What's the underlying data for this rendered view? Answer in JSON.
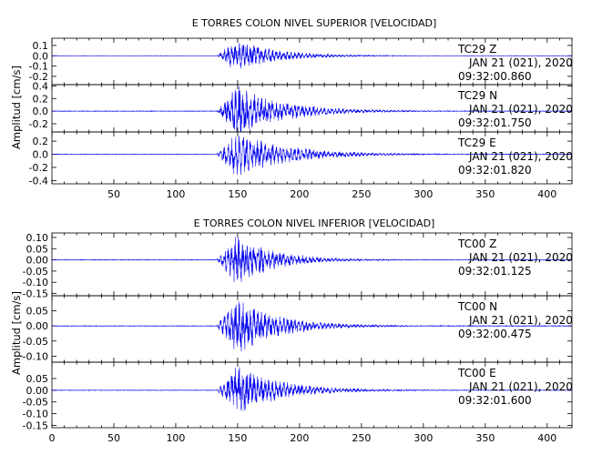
{
  "chart_data": [
    {
      "type": "line",
      "title": "E TORRES COLON NIVEL SUPERIOR [VELOCIDAD]",
      "ylabel": "Amplitud [cm/s]",
      "xlim": [
        0,
        420
      ],
      "x_ticks": [
        50,
        100,
        150,
        200,
        250,
        300,
        350,
        400
      ],
      "grid": false,
      "traces": [
        {
          "station": "TC29",
          "component": "Z",
          "date_label": "JAN 21 (021), 2020",
          "time_label": "09:32:00.860",
          "ylim": [
            -0.28,
            0.17
          ],
          "y_ticks": [
            "0.1",
            "0.0",
            "-0.1",
            "-0.2"
          ],
          "y_tick_values": [
            0.1,
            0.0,
            -0.1,
            -0.2
          ],
          "onset_s": 133,
          "peak_amplitude": 0.15,
          "decay": 32,
          "seed": 11
        },
        {
          "station": "TC29",
          "component": "N",
          "date_label": "JAN 21 (021), 2020",
          "time_label": "09:32:01.750",
          "ylim": [
            -0.33,
            0.42
          ],
          "y_ticks": [
            "0.4",
            "0.2",
            "0.0",
            "-0.2"
          ],
          "y_tick_values": [
            0.4,
            0.2,
            0.0,
            -0.2
          ],
          "onset_s": 133,
          "peak_amplitude": 0.38,
          "decay": 38,
          "seed": 23
        },
        {
          "station": "TC29",
          "component": "E",
          "date_label": "JAN 21 (021), 2020",
          "time_label": "09:32:01.820",
          "ylim": [
            -0.45,
            0.34
          ],
          "y_ticks": [
            "0.2",
            "0.0",
            "-0.2",
            "-0.4"
          ],
          "y_tick_values": [
            0.2,
            0.0,
            -0.2,
            -0.4
          ],
          "onset_s": 133,
          "peak_amplitude": 0.32,
          "decay": 42,
          "seed": 37
        }
      ]
    },
    {
      "type": "line",
      "title": "E TORRES COLON NIVEL INFERIOR [VELOCIDAD]",
      "ylabel": "Amplitud [cm/s]",
      "xlim": [
        0,
        420
      ],
      "x_ticks": [
        0,
        50,
        100,
        150,
        200,
        250,
        300,
        350,
        400
      ],
      "grid": false,
      "traces": [
        {
          "station": "TC00",
          "component": "Z",
          "date_label": "JAN 21 (021), 2020",
          "time_label": "09:32:01.125",
          "ylim": [
            -0.16,
            0.12
          ],
          "y_ticks": [
            "0.10",
            "0.05",
            "0.00",
            "-0.05",
            "-0.10",
            "-0.15"
          ],
          "y_tick_values": [
            0.1,
            0.05,
            0.0,
            -0.05,
            -0.1,
            -0.15
          ],
          "onset_s": 133,
          "peak_amplitude": 0.11,
          "decay": 30,
          "seed": 53
        },
        {
          "station": "TC00",
          "component": "N",
          "date_label": "JAN 21 (021), 2020",
          "time_label": "09:32:00.475",
          "ylim": [
            -0.12,
            0.1
          ],
          "y_ticks": [
            "0.05",
            "0.00",
            "-0.05",
            "-0.10"
          ],
          "y_tick_values": [
            0.05,
            0.0,
            -0.05,
            -0.1
          ],
          "onset_s": 133,
          "peak_amplitude": 0.09,
          "decay": 34,
          "seed": 71
        },
        {
          "station": "TC00",
          "component": "E",
          "date_label": "JAN 21 (021), 2020",
          "time_label": "09:32:01.600",
          "ylim": [
            -0.16,
            0.12
          ],
          "y_ticks": [
            "0.05",
            "0.00",
            "-0.05",
            "-0.10",
            "-0.15"
          ],
          "y_tick_values": [
            0.05,
            0.0,
            -0.05,
            -0.1,
            -0.15
          ],
          "onset_s": 133,
          "peak_amplitude": 0.1,
          "decay": 36,
          "seed": 89
        }
      ]
    }
  ],
  "colors": {
    "trace": "#0000ee",
    "axes": "#000000",
    "background": "#ffffff"
  }
}
